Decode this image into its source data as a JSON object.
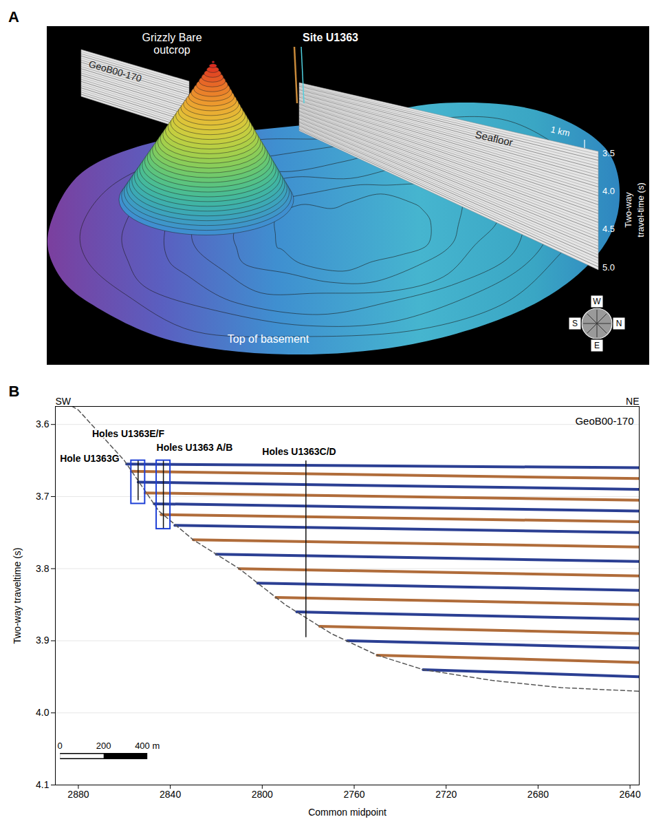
{
  "panel_a": {
    "label": "A",
    "outcrop": "Grizzly Bare outcrop",
    "site": "Site U1363",
    "profile": "GeoB00-170",
    "seafloor": "Seafloor",
    "scale_bar": "1 km",
    "axis_label": "Two-way travel-time (s)",
    "tick_range": [
      3.5,
      5.0
    ],
    "ticks": [
      3.5,
      {
        "value": 4,
        "label": "4.0"
      },
      4.5,
      {
        "value": 5,
        "label": "5.0"
      }
    ],
    "surface": "Top of basement",
    "compass": {
      "top": "W",
      "left": "S",
      "right": "N",
      "bottom": "E"
    }
  },
  "chart_data": {
    "type": "seismic_section",
    "panel": "B",
    "title": "GeoB00-170",
    "direction_labels": [
      "SW",
      "NE"
    ],
    "x_label": "Common midpoint",
    "y_label": "Two-way traveltime (s)",
    "xlim": [
      2890,
      2636
    ],
    "xticks": [
      2880,
      2840,
      2800,
      2760,
      2720,
      2680,
      2640
    ],
    "ylim": [
      3.575,
      4.1
    ],
    "yticks": [
      3.6,
      3.7,
      3.8,
      3.9,
      {
        "value": 4,
        "label": "4.0"
      },
      4.1
    ],
    "grid": true,
    "reflectors": {
      "colors": [
        "#2b3f93",
        "#b06c3a"
      ],
      "lines": [
        [
          [
            2859,
            3.655
          ],
          [
            2636,
            3.66
          ]
        ],
        [
          [
            2857,
            3.665
          ],
          [
            2636,
            3.675
          ]
        ],
        [
          [
            2854,
            3.68
          ],
          [
            2636,
            3.69
          ]
        ],
        [
          [
            2851,
            3.695
          ],
          [
            2636,
            3.705
          ]
        ],
        [
          [
            2847,
            3.71
          ],
          [
            2636,
            3.72
          ]
        ],
        [
          [
            2844,
            3.725
          ],
          [
            2636,
            3.735
          ]
        ],
        [
          [
            2838,
            3.74
          ],
          [
            2636,
            3.75
          ]
        ],
        [
          [
            2830,
            3.76
          ],
          [
            2636,
            3.77
          ]
        ],
        [
          [
            2820,
            3.78
          ],
          [
            2636,
            3.79
          ]
        ],
        [
          [
            2810,
            3.8
          ],
          [
            2636,
            3.81
          ]
        ],
        [
          [
            2802,
            3.82
          ],
          [
            2636,
            3.83
          ]
        ],
        [
          [
            2794,
            3.84
          ],
          [
            2636,
            3.85
          ]
        ],
        [
          [
            2785,
            3.86
          ],
          [
            2636,
            3.87
          ]
        ],
        [
          [
            2775,
            3.88
          ],
          [
            2636,
            3.89
          ]
        ],
        [
          [
            2763,
            3.9
          ],
          [
            2636,
            3.91
          ]
        ],
        [
          [
            2750,
            3.92
          ],
          [
            2636,
            3.93
          ]
        ],
        [
          [
            2730,
            3.94
          ],
          [
            2636,
            3.95
          ]
        ]
      ]
    },
    "basement": [
      [
        2888,
        3.565
      ],
      [
        2880,
        3.58
      ],
      [
        2860,
        3.65
      ],
      [
        2845,
        3.72
      ],
      [
        2830,
        3.76
      ],
      [
        2810,
        3.8
      ],
      [
        2790,
        3.85
      ],
      [
        2770,
        3.89
      ],
      [
        2750,
        3.92
      ],
      [
        2730,
        3.94
      ],
      [
        2700,
        3.955
      ],
      [
        2670,
        3.965
      ],
      [
        2636,
        3.97
      ]
    ],
    "boxes": [
      {
        "x1": 2857,
        "x2": 2851,
        "y1": 3.65,
        "y2": 3.71
      },
      {
        "x1": 2846,
        "x2": 2840,
        "y1": 3.65,
        "y2": 3.745
      }
    ],
    "holes": [
      {
        "x": 2854,
        "y1": 3.65,
        "y2": 3.705
      },
      {
        "x": 2843,
        "y1": 3.65,
        "y2": 3.745
      },
      {
        "x": 2781,
        "y1": 3.65,
        "y2": 3.895
      }
    ],
    "labels": [
      {
        "text": "Hole U1363G",
        "x": 2888,
        "y": 3.648
      },
      {
        "text": "Holes U1363E/F",
        "x": 2874,
        "y": 3.613
      },
      {
        "text": "Holes U1363 A/B",
        "x": 2846,
        "y": 3.632
      },
      {
        "text": "Holes U1363C/D",
        "x": 2800,
        "y": 3.638
      }
    ],
    "scale_bar": {
      "labels": [
        "0",
        "200",
        "400 m"
      ],
      "x": [
        2888,
        2869,
        2850
      ],
      "y": 4.06
    }
  }
}
